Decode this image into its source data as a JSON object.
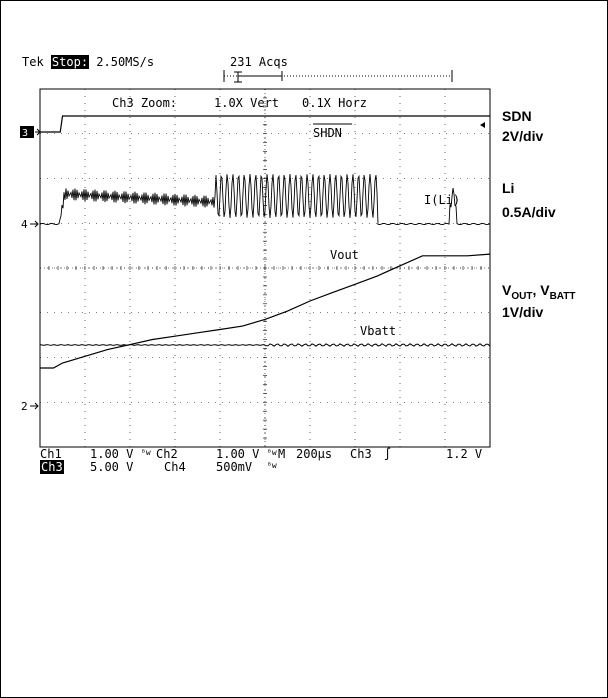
{
  "header": {
    "brand": "Tek",
    "state": "Stop:",
    "rate": "2.50MS/s",
    "acqs": "231 Acqs"
  },
  "zoom": {
    "label": "Ch3 Zoom:",
    "vert": "1.0X Vert",
    "horz": "0.1X Horz"
  },
  "markers": {
    "ch3": "3",
    "ch4": "4",
    "ch2": "2"
  },
  "trace_labels": {
    "shdn": "SHDN",
    "iLi": "I(Li)",
    "vout": "Vout",
    "vbatt": "Vbatt"
  },
  "side_labels": {
    "sdn_title": "SDN",
    "sdn_scale": "2V/div",
    "li_title": "Li",
    "li_scale": "0.5A/div",
    "v_scale": "1V/div"
  },
  "readout": {
    "ch1": "Ch1",
    "ch1_val": "1.00 V",
    "ch2": "Ch2",
    "ch2_val": "1.00 V",
    "m_label": "M",
    "timebase": "200μs",
    "trig_ch": "Ch3",
    "trig_sym": "∫",
    "trig_val": "1.2 V",
    "ch3": "Ch3",
    "ch3_val": "5.00 V",
    "ch4": "Ch4",
    "ch4_val": "500mV",
    "bw": "ᴮw"
  },
  "chart_data": {
    "type": "line",
    "title": "",
    "xlabel": "",
    "ylabel": "",
    "x_unit_per_div": "200μs",
    "xlim": [
      0,
      2000
    ],
    "grid": true,
    "series": [
      {
        "name": "SHDN",
        "x": [
          0,
          90,
          100,
          2000
        ],
        "y": [
          0,
          0,
          1,
          1
        ]
      },
      {
        "name": "I(Li)",
        "x": [
          0,
          80,
          100,
          110,
          200,
          300,
          400,
          700,
          800,
          850,
          1000,
          1200,
          1400,
          1500,
          1520,
          1800,
          1840,
          1870,
          1900,
          2000
        ],
        "y": [
          0,
          0,
          0.45,
          0.55,
          0.45,
          0.4,
          0.35,
          0.35,
          0.4,
          0.55,
          0.55,
          0.55,
          0.55,
          0.55,
          0,
          0,
          0.4,
          0,
          0,
          0
        ]
      },
      {
        "name": "Vout",
        "x": [
          0,
          60,
          100,
          200,
          300,
          400,
          500,
          600,
          700,
          800,
          900,
          1000,
          1100,
          1200,
          1300,
          1400,
          1500,
          1600,
          1700,
          1800,
          1900,
          2000
        ],
        "y": [
          0.5,
          0.5,
          0.65,
          0.85,
          1.05,
          1.2,
          1.35,
          1.45,
          1.55,
          1.65,
          1.75,
          1.95,
          2.2,
          2.5,
          2.75,
          3.0,
          3.25,
          3.55,
          3.85,
          3.85,
          3.85,
          3.9
        ]
      },
      {
        "name": "Vbatt",
        "x": [
          0,
          2000
        ],
        "y": [
          1.0,
          1.0
        ]
      }
    ]
  },
  "colors": {
    "trace": "#000000",
    "grid": "#000000",
    "background": "#ffffff"
  }
}
